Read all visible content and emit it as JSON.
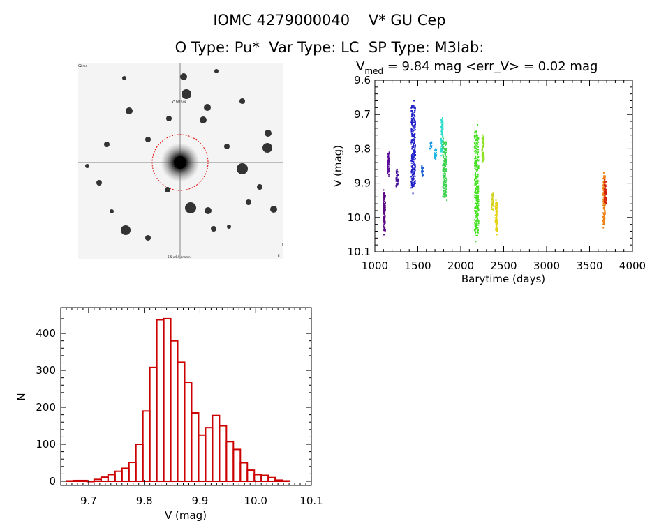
{
  "header": {
    "title_line1": "IOMC 4279000040    V* GU Cep",
    "title_line2": "O Type: Pu*  Var Type: LC  SP Type: M3Iab:"
  },
  "lc_header": {
    "v_symbol": "V",
    "v_subscript": "med",
    "text": " = 9.84 mag <err_V> = 0.02 mag"
  },
  "finder_image": {
    "target_label": "V* GU Cep",
    "corner_labels": [
      "POSS2 red",
      "N",
      "E",
      "6.5 x 6.5 arcmin"
    ],
    "circle_color": "#e00000"
  },
  "chart_data": [
    {
      "type": "scatter",
      "title": "V_med = 9.84 mag <err_V> = 0.02 mag",
      "xlabel": "Barytime (days)",
      "ylabel": "V (mag)",
      "xlim": [
        1000,
        4000
      ],
      "ylim": [
        9.6,
        10.1
      ],
      "y_inverted": true,
      "xticks": [
        1000,
        1500,
        2000,
        2500,
        3000,
        3500,
        4000
      ],
      "yticks": [
        9.6,
        9.7,
        9.8,
        9.9,
        10.0,
        10.1
      ],
      "ytick_labels": [
        "9.6",
        "9.7",
        "9.8",
        "9.9",
        "10.0",
        "10.1"
      ],
      "series": [
        {
          "name": "s1",
          "color": "#5a0a82",
          "x": 1110,
          "vmin": 9.92,
          "vmax": 10.05
        },
        {
          "name": "s2",
          "color": "#5a0a9a",
          "x": 1160,
          "vmin": 9.81,
          "vmax": 9.88
        },
        {
          "name": "s3",
          "color": "#46149a",
          "x": 1260,
          "vmin": 9.86,
          "vmax": 9.91
        },
        {
          "name": "s4",
          "color": "#2020c8",
          "x": 1448,
          "vmin": 9.66,
          "vmax": 9.93
        },
        {
          "name": "s5",
          "color": "#1a5fd6",
          "x": 1555,
          "vmin": 9.85,
          "vmax": 9.88
        },
        {
          "name": "s6",
          "color": "#1496e0",
          "x": 1650,
          "vmin": 9.78,
          "vmax": 9.8
        },
        {
          "name": "s7",
          "color": "#19b4e6",
          "x": 1705,
          "vmin": 9.8,
          "vmax": 9.83
        },
        {
          "name": "s8",
          "color": "#30dccd",
          "x": 1782,
          "vmin": 9.71,
          "vmax": 9.82
        },
        {
          "name": "s9",
          "color": "#3ad24c",
          "x": 1815,
          "vmin": 9.77,
          "vmax": 9.95
        },
        {
          "name": "s10",
          "color": "#45e020",
          "x": 2185,
          "vmin": 9.73,
          "vmax": 10.07
        },
        {
          "name": "s11",
          "color": "#8ee020",
          "x": 2260,
          "vmin": 9.76,
          "vmax": 9.84
        },
        {
          "name": "s12",
          "color": "#d2d222",
          "x": 2370,
          "vmin": 9.93,
          "vmax": 9.98
        },
        {
          "name": "s13",
          "color": "#e6d214",
          "x": 2415,
          "vmin": 9.95,
          "vmax": 10.05
        },
        {
          "name": "s14",
          "color": "#f08214",
          "x": 3670,
          "vmin": 9.87,
          "vmax": 10.03
        },
        {
          "name": "s15",
          "color": "#d21e0a",
          "x": 3685,
          "vmin": 9.89,
          "vmax": 9.96
        }
      ]
    },
    {
      "type": "bar",
      "title": "",
      "xlabel": "V (mag)",
      "ylabel": "N",
      "xlim": [
        9.65,
        10.1
      ],
      "ylim": [
        0,
        470
      ],
      "xticks": [
        9.7,
        9.8,
        9.9,
        10.0,
        10.1
      ],
      "xtick_labels": [
        "9.7",
        "9.8",
        "9.9",
        "10.0",
        "10.1"
      ],
      "yticks": [
        0,
        100,
        200,
        300,
        400
      ],
      "bin_width": 0.0125,
      "bin_start": 9.66,
      "counts": [
        1,
        2,
        2,
        0,
        5,
        11,
        18,
        27,
        35,
        51,
        100,
        190,
        308,
        437,
        440,
        380,
        322,
        268,
        185,
        125,
        145,
        178,
        150,
        107,
        86,
        50,
        30,
        18,
        16,
        10,
        3,
        1
      ],
      "bar_color": "#cc0000"
    }
  ]
}
